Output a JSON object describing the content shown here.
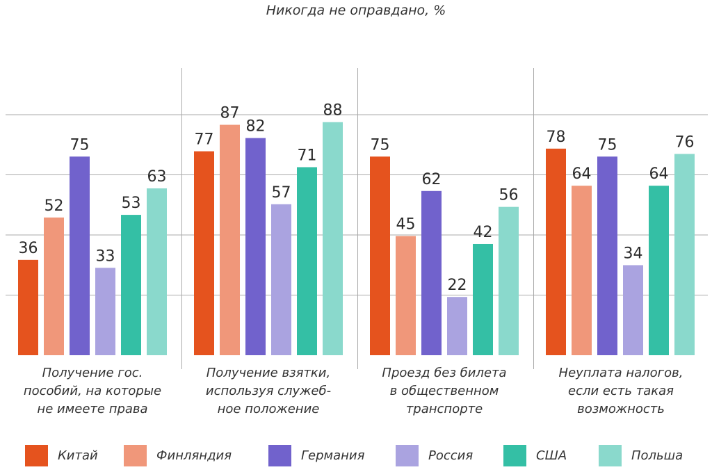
{
  "chart_data": {
    "type": "bar",
    "title": "Никогда не оправдано, %",
    "categories": [
      "Получение гос. пособий, на которые не имеете права",
      "Получение взятки, используя служеб-ное положение",
      "Проезд без билета в общественном транспорте",
      "Неуплата налогов, если есть такая возможность"
    ],
    "category_lines": [
      [
        "Получение гос.",
        "пособий, на которые",
        "не имеете права"
      ],
      [
        "Получение взятки,",
        "используя служеб-",
        "ное положение"
      ],
      [
        "Проезд без билета",
        "в общественном",
        "транспорте"
      ],
      [
        "Неуплата налогов,",
        "если есть такая",
        "возможность"
      ]
    ],
    "series": [
      {
        "name": "Китай",
        "color": "#e5531e",
        "values": [
          36,
          77,
          75,
          78
        ]
      },
      {
        "name": "Финляндия",
        "color": "#f0977a",
        "values": [
          52,
          87,
          45,
          64
        ]
      },
      {
        "name": "Германия",
        "color": "#7162cc",
        "values": [
          75,
          82,
          62,
          75
        ]
      },
      {
        "name": "Россия",
        "color": "#aaa3e0",
        "values": [
          33,
          57,
          22,
          34
        ]
      },
      {
        "name": "США",
        "color": "#34bfa5",
        "values": [
          53,
          71,
          42,
          64
        ]
      },
      {
        "name": "Польша",
        "color": "#8ad9cc",
        "values": [
          63,
          88,
          56,
          76
        ]
      }
    ],
    "ylim": [
      0,
      100
    ],
    "grid": true,
    "data_labels": true,
    "legend_position": "bottom"
  }
}
